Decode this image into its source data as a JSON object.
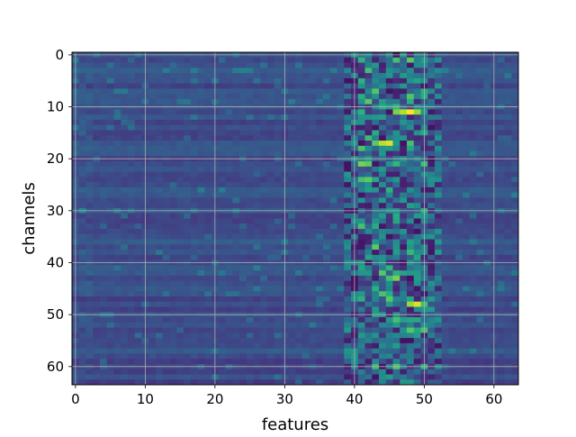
{
  "chart_data": {
    "type": "heatmap",
    "xlabel": "features",
    "ylabel": "channels",
    "n_cols": 64,
    "n_rows": 64,
    "xlim": [
      -0.5,
      63.5
    ],
    "ylim": [
      63.5,
      -0.5
    ],
    "x_ticks": [
      0,
      10,
      20,
      30,
      40,
      50,
      60
    ],
    "y_ticks": [
      0,
      10,
      20,
      30,
      40,
      50,
      60
    ],
    "grid": true,
    "colormap": "viridis",
    "hot_cells": [
      {
        "row": 1,
        "col": 41,
        "value": 0.65
      },
      {
        "row": 1,
        "col": 46,
        "value": 0.7
      },
      {
        "row": 1,
        "col": 50,
        "value": 0.55
      },
      {
        "row": 3,
        "col": 42,
        "value": 0.7
      },
      {
        "row": 3,
        "col": 45,
        "value": 0.5
      },
      {
        "row": 11,
        "col": 46,
        "value": 0.8
      },
      {
        "row": 11,
        "col": 47,
        "value": 0.9
      },
      {
        "row": 11,
        "col": 48,
        "value": 1.0
      },
      {
        "row": 11,
        "col": 49,
        "value": 0.85
      },
      {
        "row": 17,
        "col": 43,
        "value": 0.75
      },
      {
        "row": 17,
        "col": 44,
        "value": 0.9
      },
      {
        "row": 17,
        "col": 45,
        "value": 0.95
      },
      {
        "row": 17,
        "col": 48,
        "value": 0.7
      },
      {
        "row": 21,
        "col": 41,
        "value": 0.8
      },
      {
        "row": 21,
        "col": 42,
        "value": 0.75
      },
      {
        "row": 24,
        "col": 41,
        "value": 0.7
      },
      {
        "row": 24,
        "col": 42,
        "value": 0.75
      },
      {
        "row": 24,
        "col": 43,
        "value": 0.6
      },
      {
        "row": 43,
        "col": 45,
        "value": 0.7
      },
      {
        "row": 43,
        "col": 46,
        "value": 0.8
      },
      {
        "row": 48,
        "col": 48,
        "value": 0.85
      },
      {
        "row": 48,
        "col": 49,
        "value": 0.95
      },
      {
        "row": 48,
        "col": 50,
        "value": 0.7
      },
      {
        "row": 51,
        "col": 48,
        "value": 0.6
      },
      {
        "row": 51,
        "col": 49,
        "value": 0.6
      }
    ]
  }
}
